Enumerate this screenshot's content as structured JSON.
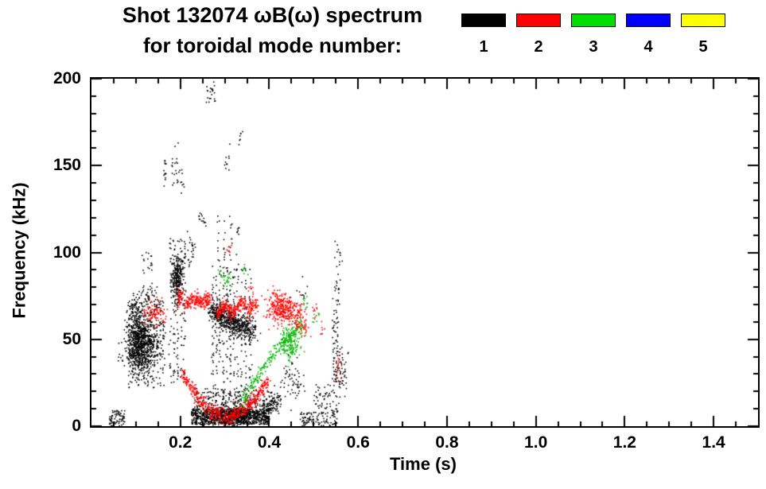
{
  "title": {
    "line1": "Shot 132074 ωB(ω) spectrum",
    "line2": "for toroidal mode number:"
  },
  "legend": {
    "entries": [
      {
        "label": "1",
        "color": "#000000"
      },
      {
        "label": "2",
        "color": "#ff0000"
      },
      {
        "label": "3",
        "color": "#00e000"
      },
      {
        "label": "4",
        "color": "#0000ff"
      },
      {
        "label": "5",
        "color": "#ffff00"
      }
    ]
  },
  "chart_data": {
    "type": "scatter",
    "title": "Shot 132074 ωB(ω) spectrum for toroidal mode number: 1-5",
    "xlabel": "Time (s)",
    "ylabel": "Frequency (kHz)",
    "xlim": [
      0,
      1.5
    ],
    "ylim": [
      0,
      200
    ],
    "xticks": [
      0.2,
      0.4,
      0.6,
      0.8,
      1.0,
      1.2,
      1.4
    ],
    "xtick_labels": [
      "0.2",
      "0.4",
      "0.6",
      "0.8",
      "1.0",
      "1.2",
      "1.4"
    ],
    "yticks": [
      0,
      50,
      100,
      150,
      200
    ],
    "ytick_labels": [
      "0",
      "50",
      "100",
      "150",
      "200"
    ],
    "xminor_step": 0.05,
    "yminor_step": 10,
    "grid": false,
    "legend_position": "top-right",
    "series": [
      {
        "name": "n=1",
        "mode": 1,
        "color": "#000000",
        "clusters": [
          {
            "kind": "band",
            "t0": 0.04,
            "t1": 0.075,
            "f0": 0,
            "f1": 9,
            "n": 70
          },
          {
            "kind": "blob",
            "t": 0.115,
            "f": 46,
            "st": 0.018,
            "sf": 8,
            "n": 650
          },
          {
            "kind": "blob",
            "t": 0.1,
            "f": 56,
            "st": 0.012,
            "sf": 9,
            "n": 220
          },
          {
            "kind": "streaks",
            "ts": [
              0.085,
              0.092,
              0.099,
              0.106,
              0.113,
              0.12,
              0.127,
              0.134,
              0.141,
              0.148,
              0.155,
              0.162
            ],
            "f0": 22,
            "f1": 72,
            "n": 22
          },
          {
            "kind": "streaks",
            "ts": [
              0.118,
              0.127,
              0.136
            ],
            "f0": 70,
            "f1": 100,
            "n": 10
          },
          {
            "kind": "arc",
            "pts": [
              [
                0.09,
                68
              ],
              [
                0.12,
                77
              ],
              [
                0.155,
                70
              ]
            ],
            "n": 50,
            "jt": 0.004,
            "jf": 3
          },
          {
            "kind": "streaks",
            "ts": [
              0.178,
              0.186,
              0.194,
              0.202,
              0.209
            ],
            "f0": 25,
            "f1": 108,
            "n": 26
          },
          {
            "kind": "blob",
            "t": 0.193,
            "f": 85,
            "st": 0.007,
            "sf": 7,
            "n": 260
          },
          {
            "kind": "blob",
            "t": 0.19,
            "f": 148,
            "st": 0.005,
            "sf": 6,
            "n": 22
          },
          {
            "kind": "streaks",
            "ts": [
              0.166
            ],
            "f0": 138,
            "f1": 157,
            "n": 14
          },
          {
            "kind": "blob",
            "t": 0.205,
            "f": 140,
            "st": 0.003,
            "sf": 3,
            "n": 7
          },
          {
            "kind": "blob",
            "t": 0.225,
            "f": 102,
            "st": 0.006,
            "sf": 4,
            "n": 26
          },
          {
            "kind": "blob",
            "t": 0.247,
            "f": 118,
            "st": 0.004,
            "sf": 4,
            "n": 14
          },
          {
            "kind": "blob",
            "t": 0.27,
            "f": 191,
            "st": 0.006,
            "sf": 3,
            "n": 22
          },
          {
            "kind": "blob",
            "t": 0.305,
            "f": 154,
            "st": 0.004,
            "sf": 4,
            "n": 10
          },
          {
            "kind": "blob",
            "t": 0.335,
            "f": 166,
            "st": 0.003,
            "sf": 3,
            "n": 7
          },
          {
            "kind": "streaks",
            "ts": [
              0.273,
              0.281,
              0.289,
              0.297,
              0.305,
              0.313,
              0.321,
              0.329,
              0.337,
              0.347,
              0.357
            ],
            "f0": 14,
            "f1": 92,
            "n": 26
          },
          {
            "kind": "streaks",
            "ts": [
              0.285,
              0.299,
              0.314,
              0.33
            ],
            "f0": 92,
            "f1": 121,
            "n": 9
          },
          {
            "kind": "arc",
            "pts": [
              [
                0.27,
                66
              ],
              [
                0.3,
                62
              ],
              [
                0.33,
                58
              ],
              [
                0.365,
                55
              ]
            ],
            "n": 550,
            "jt": 0.006,
            "jf": 3.5
          },
          {
            "kind": "band",
            "t0": 0.225,
            "t1": 0.4,
            "f0": 1,
            "f1": 10,
            "n": 800
          },
          {
            "kind": "blob",
            "t": 0.315,
            "f": 6,
            "st": 0.028,
            "sf": 3,
            "n": 450
          },
          {
            "kind": "band",
            "t0": 0.23,
            "t1": 0.38,
            "f0": 10,
            "f1": 22,
            "n": 160
          },
          {
            "kind": "arc",
            "pts": [
              [
                0.385,
                9
              ],
              [
                0.405,
                13
              ],
              [
                0.425,
                17
              ]
            ],
            "n": 140,
            "jt": 0.005,
            "jf": 3.5
          },
          {
            "kind": "blob",
            "t": 0.452,
            "f": 25,
            "st": 0.014,
            "sf": 6,
            "n": 60
          },
          {
            "kind": "band",
            "t0": 0.47,
            "t1": 0.545,
            "f0": 0,
            "f1": 8,
            "n": 90
          },
          {
            "kind": "band",
            "t0": 0.5,
            "t1": 0.545,
            "f0": 9,
            "f1": 24,
            "n": 45
          },
          {
            "kind": "streaks",
            "ts": [
              0.545,
              0.552
            ],
            "f0": 0,
            "f1": 62,
            "n": 38
          },
          {
            "kind": "blob",
            "t": 0.553,
            "f": 78,
            "st": 0.004,
            "sf": 10,
            "n": 26
          },
          {
            "kind": "blob",
            "t": 0.555,
            "f": 99,
            "st": 0.005,
            "sf": 4,
            "n": 10
          },
          {
            "kind": "blob",
            "t": 0.561,
            "f": 31,
            "st": 0.007,
            "sf": 7,
            "n": 55
          },
          {
            "kind": "blob",
            "t": 0.47,
            "f": 76,
            "st": 0.008,
            "sf": 4,
            "n": 12
          }
        ]
      },
      {
        "name": "n=2",
        "mode": 2,
        "color": "#ff0000",
        "clusters": [
          {
            "kind": "blob",
            "t": 0.145,
            "f": 65,
            "st": 0.013,
            "sf": 4,
            "n": 90
          },
          {
            "kind": "blob",
            "t": 0.2,
            "f": 74,
            "st": 0.006,
            "sf": 3,
            "n": 45
          },
          {
            "kind": "arc",
            "pts": [
              [
                0.213,
                70
              ],
              [
                0.232,
                73
              ],
              [
                0.252,
                71
              ],
              [
                0.27,
                74
              ]
            ],
            "n": 200,
            "jt": 0.003,
            "jf": 2.2
          },
          {
            "kind": "arc",
            "pts": [
              [
                0.282,
                64
              ],
              [
                0.3,
                70
              ],
              [
                0.318,
                65
              ],
              [
                0.336,
                71
              ],
              [
                0.354,
                67
              ],
              [
                0.374,
                71
              ]
            ],
            "n": 300,
            "jt": 0.003,
            "jf": 2.2
          },
          {
            "kind": "arc",
            "pts": [
              [
                0.205,
                30
              ],
              [
                0.23,
                20
              ],
              [
                0.255,
                12
              ],
              [
                0.28,
                7
              ],
              [
                0.305,
                5
              ],
              [
                0.33,
                7
              ],
              [
                0.355,
                12
              ],
              [
                0.378,
                19
              ],
              [
                0.4,
                27
              ]
            ],
            "n": 550,
            "jt": 0.0025,
            "jf": 2.2
          },
          {
            "kind": "blob",
            "t": 0.43,
            "f": 67,
            "st": 0.016,
            "sf": 4,
            "n": 300
          },
          {
            "kind": "blob",
            "t": 0.462,
            "f": 62,
            "st": 0.007,
            "sf": 4,
            "n": 60
          },
          {
            "kind": "blob",
            "t": 0.477,
            "f": 57,
            "st": 0.006,
            "sf": 3,
            "n": 30
          },
          {
            "kind": "blob",
            "t": 0.505,
            "f": 65,
            "st": 0.004,
            "sf": 3,
            "n": 10
          },
          {
            "kind": "blob",
            "t": 0.52,
            "f": 55,
            "st": 0.003,
            "sf": 2,
            "n": 7
          },
          {
            "kind": "blob",
            "t": 0.31,
            "f": 102,
            "st": 0.004,
            "sf": 3,
            "n": 9
          },
          {
            "kind": "blob",
            "t": 0.36,
            "f": 79,
            "st": 0.004,
            "sf": 2.5,
            "n": 10
          },
          {
            "kind": "blob",
            "t": 0.415,
            "f": 75,
            "st": 0.005,
            "sf": 3,
            "n": 18
          },
          {
            "kind": "blob",
            "t": 0.556,
            "f": 33,
            "st": 0.005,
            "sf": 4,
            "n": 14
          }
        ]
      },
      {
        "name": "n=3",
        "mode": 3,
        "color": "#00b400",
        "clusters": [
          {
            "kind": "arc",
            "pts": [
              [
                0.335,
                13
              ],
              [
                0.357,
                22
              ],
              [
                0.378,
                30
              ],
              [
                0.398,
                38
              ],
              [
                0.418,
                45
              ],
              [
                0.438,
                50
              ],
              [
                0.458,
                54
              ]
            ],
            "n": 220,
            "jt": 0.0025,
            "jf": 2
          },
          {
            "kind": "blob",
            "t": 0.447,
            "f": 47,
            "st": 0.011,
            "sf": 5,
            "n": 140
          },
          {
            "kind": "blob",
            "t": 0.3,
            "f": 86,
            "st": 0.008,
            "sf": 3,
            "n": 28
          },
          {
            "kind": "blob",
            "t": 0.345,
            "f": 88,
            "st": 0.004,
            "sf": 2.5,
            "n": 8
          },
          {
            "kind": "blob",
            "t": 0.482,
            "f": 72,
            "st": 0.004,
            "sf": 3,
            "n": 9
          },
          {
            "kind": "blob",
            "t": 0.502,
            "f": 62,
            "st": 0.004,
            "sf": 3,
            "n": 8
          },
          {
            "kind": "blob",
            "t": 0.468,
            "f": 57,
            "st": 0.006,
            "sf": 3,
            "n": 25
          }
        ]
      },
      {
        "name": "n=4",
        "mode": 4,
        "color": "#0000ff",
        "clusters": []
      },
      {
        "name": "n=5",
        "mode": 5,
        "color": "#ffff00",
        "clusters": []
      }
    ]
  }
}
